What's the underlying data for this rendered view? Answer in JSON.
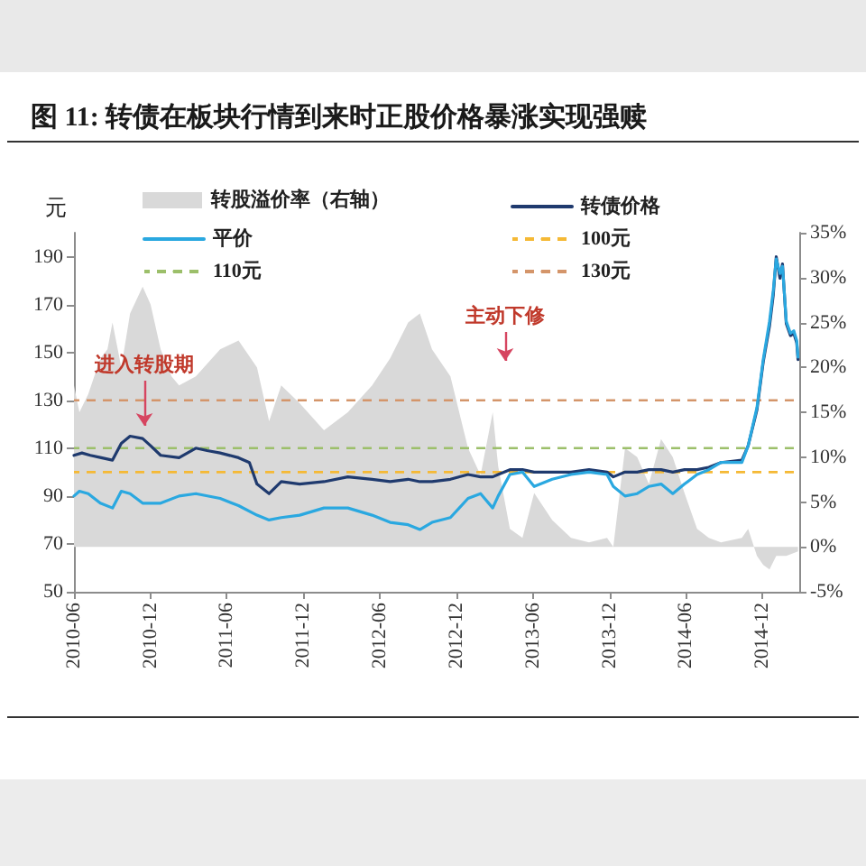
{
  "chart_data": {
    "type": "line",
    "title": "图 11: 转债在板块行情到来时正股价格暴涨实现强赎",
    "ylabel": "元",
    "xlim": [
      "2010-06-01",
      "2015-02-27"
    ],
    "xticks": [
      "2010-06",
      "2010-12",
      "2011-06",
      "2011-12",
      "2012-06",
      "2012-12",
      "2013-06",
      "2013-12",
      "2014-06",
      "2014-12"
    ],
    "ylim": [
      50,
      200
    ],
    "yticks": [
      50,
      70,
      90,
      110,
      130,
      150,
      170,
      190
    ],
    "y2lim": [
      -5,
      35
    ],
    "y2ticks": [
      {
        "value": -5,
        "label": "-5%"
      },
      {
        "value": 0,
        "label": "0%"
      },
      {
        "value": 5,
        "label": "5%"
      },
      {
        "value": 10,
        "label": "10%"
      },
      {
        "value": 15,
        "label": "15%"
      },
      {
        "value": 20,
        "label": "20%"
      },
      {
        "value": 25,
        "label": "25%"
      },
      {
        "value": 30,
        "label": "30%"
      },
      {
        "value": 35,
        "label": "35%"
      }
    ],
    "legend": "top",
    "marker": "none",
    "series": [
      {
        "name": "转股溢价率（右轴）",
        "type": "area",
        "axis": "y2",
        "color": "#d9d9d9",
        "x": [
          "2010-06-01",
          "2010-06-14",
          "2010-07-05",
          "2010-08-03",
          "2010-08-20",
          "2010-09-01",
          "2010-09-22",
          "2010-10-13",
          "2010-11-12",
          "2010-12-01",
          "2010-12-25",
          "2011-01-20",
          "2011-02-07",
          "2011-03-19",
          "2011-05-16",
          "2011-06-29",
          "2011-08-12",
          "2011-09-10",
          "2011-10-09",
          "2011-11-22",
          "2012-01-19",
          "2012-03-16",
          "2012-05-13",
          "2012-06-25",
          "2012-08-07",
          "2012-09-04",
          "2012-10-03",
          "2012-11-16",
          "2012-12-28",
          "2013-01-27",
          "2013-02-25",
          "2013-03-10",
          "2013-04-07",
          "2013-05-07",
          "2013-06-04",
          "2013-07-17",
          "2013-08-31",
          "2013-10-13",
          "2013-11-25",
          "2013-12-10",
          "2014-01-07",
          "2014-02-05",
          "2014-03-05",
          "2014-04-03",
          "2014-05-01",
          "2014-05-29",
          "2014-06-28",
          "2014-07-26",
          "2014-08-24",
          "2014-10-13",
          "2014-10-28",
          "2014-11-18",
          "2014-12-03",
          "2014-12-18",
          "2015-01-03",
          "2015-01-27",
          "2015-02-24"
        ],
        "values": [
          18,
          15,
          17,
          21,
          22,
          25,
          20,
          26,
          29,
          27,
          22,
          19,
          18,
          19,
          22,
          23,
          20,
          14,
          18,
          16,
          13,
          15,
          18,
          21,
          25,
          26,
          22,
          19,
          11,
          8,
          15,
          9,
          2,
          1,
          6,
          3,
          1,
          0.5,
          1,
          0,
          11,
          10,
          7,
          12,
          10,
          6,
          2,
          1,
          0.5,
          1,
          2,
          -1,
          -2,
          -2.5,
          -1,
          -1,
          -0.5
        ]
      },
      {
        "name": "转债价格",
        "color": "#1f3a6e",
        "x": [
          "2010-06-01",
          "2010-06-20",
          "2010-07-10",
          "2010-08-05",
          "2010-09-01",
          "2010-09-22",
          "2010-10-13",
          "2010-11-12",
          "2010-12-01",
          "2010-12-25",
          "2011-02-07",
          "2011-03-19",
          "2011-04-15",
          "2011-05-16",
          "2011-06-29",
          "2011-07-25",
          "2011-08-12",
          "2011-09-10",
          "2011-10-09",
          "2011-11-22",
          "2012-01-19",
          "2012-03-16",
          "2012-05-13",
          "2012-06-25",
          "2012-08-07",
          "2012-09-04",
          "2012-10-03",
          "2012-11-16",
          "2012-12-28",
          "2013-01-27",
          "2013-02-25",
          "2013-03-10",
          "2013-04-07",
          "2013-05-07",
          "2013-06-04",
          "2013-07-17",
          "2013-08-31",
          "2013-10-13",
          "2013-11-25",
          "2013-12-10",
          "2014-01-07",
          "2014-02-05",
          "2014-03-05",
          "2014-04-03",
          "2014-05-01",
          "2014-05-29",
          "2014-06-28",
          "2014-07-26",
          "2014-08-24",
          "2014-10-13",
          "2014-10-28",
          "2014-11-18",
          "2014-12-03",
          "2014-12-18",
          "2014-12-27",
          "2015-01-03",
          "2015-01-12",
          "2015-01-18",
          "2015-01-27",
          "2015-02-06",
          "2015-02-14",
          "2015-02-21",
          "2015-02-24"
        ],
        "values": [
          107,
          108,
          107,
          106,
          105,
          112,
          115,
          114,
          111,
          107,
          106,
          110,
          109,
          108,
          106,
          104,
          95,
          91,
          96,
          95,
          96,
          98,
          97,
          96,
          97,
          96,
          96,
          97,
          99,
          98,
          98,
          99,
          101,
          101,
          100,
          100,
          100,
          101,
          100,
          98,
          100,
          100,
          101,
          101,
          100,
          101,
          101,
          102,
          104,
          105,
          111,
          126,
          146,
          161,
          174,
          190,
          181,
          187,
          162,
          157,
          158,
          154,
          147
        ]
      },
      {
        "name": "平价",
        "color": "#2aa8e0",
        "x": [
          "2010-06-01",
          "2010-06-14",
          "2010-07-05",
          "2010-08-03",
          "2010-09-01",
          "2010-09-22",
          "2010-10-13",
          "2010-11-12",
          "2010-12-25",
          "2011-02-07",
          "2011-03-19",
          "2011-05-16",
          "2011-06-29",
          "2011-08-12",
          "2011-09-10",
          "2011-10-09",
          "2011-11-22",
          "2012-01-19",
          "2012-03-16",
          "2012-05-13",
          "2012-06-25",
          "2012-08-07",
          "2012-09-04",
          "2012-10-03",
          "2012-11-16",
          "2012-12-28",
          "2013-01-27",
          "2013-02-25",
          "2013-03-10",
          "2013-04-07",
          "2013-05-07",
          "2013-06-04",
          "2013-07-17",
          "2013-08-31",
          "2013-10-13",
          "2013-11-25",
          "2013-12-10",
          "2014-01-07",
          "2014-02-05",
          "2014-03-05",
          "2014-04-03",
          "2014-05-01",
          "2014-05-29",
          "2014-06-28",
          "2014-07-26",
          "2014-08-24",
          "2014-10-13",
          "2014-10-28",
          "2014-11-18",
          "2014-12-03",
          "2014-12-18",
          "2014-12-27",
          "2015-01-03",
          "2015-01-12",
          "2015-01-18",
          "2015-01-27",
          "2015-02-06",
          "2015-02-14",
          "2015-02-21",
          "2015-02-24"
        ],
        "values": [
          90,
          92,
          91,
          87,
          85,
          92,
          91,
          87,
          87,
          90,
          91,
          89,
          86,
          82,
          80,
          81,
          82,
          85,
          85,
          82,
          79,
          78,
          76,
          79,
          81,
          89,
          91,
          85,
          90,
          99,
          100,
          94,
          97,
          99,
          100,
          99,
          94,
          90,
          91,
          94,
          95,
          91,
          95,
          99,
          101,
          104,
          104,
          111,
          127,
          147,
          163,
          176,
          189,
          183,
          186,
          163,
          158,
          159,
          155,
          148
        ]
      }
    ],
    "ref_lines": [
      {
        "axis": "y",
        "value": 100,
        "label": "100元",
        "color": "#f5b935",
        "line_style": "dashed"
      },
      {
        "axis": "y",
        "value": 110,
        "label": "110元",
        "color": "#9cbf6a",
        "line_style": "dashed"
      },
      {
        "axis": "y",
        "value": 130,
        "label": "130元",
        "color": "#d4956a",
        "line_style": "dashed"
      }
    ],
    "annotations": [
      "进入转股期",
      "主动下修"
    ]
  }
}
